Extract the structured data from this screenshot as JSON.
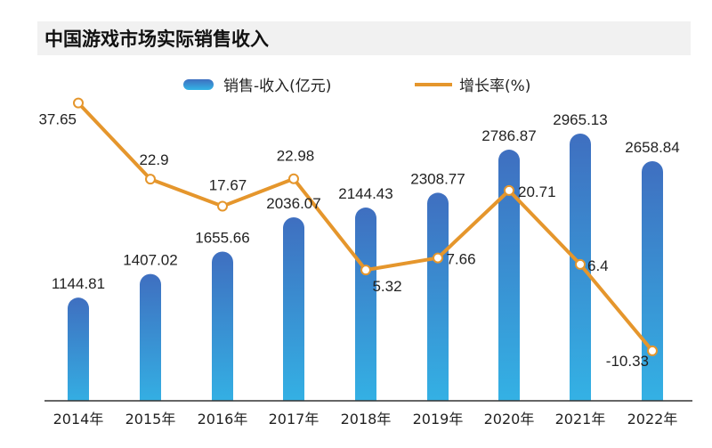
{
  "title": "中国游戏市场实际销售收入",
  "colors": {
    "bar_top": "#3f6fc0",
    "bar_bottom": "#33b4e6",
    "line": "#e5962c",
    "title_band": "#f1f1f1",
    "axis": "#333333"
  },
  "chart_data": {
    "type": "bar",
    "categories": [
      "2014年",
      "2015年",
      "2016年",
      "2017年",
      "2018年",
      "2019年",
      "2020年",
      "2021年",
      "2022年"
    ],
    "series": [
      {
        "name": "销售-收入(亿元)",
        "type": "bar",
        "values": [
          1144.81,
          1407.02,
          1655.66,
          2036.07,
          2144.43,
          2308.77,
          2786.87,
          2965.13,
          2658.84
        ],
        "labels": [
          "1144.81",
          "1407.02",
          "1655.66",
          "2036.07",
          "2144.43",
          "2308.77",
          "2786.87",
          "2965.13",
          "2658.84"
        ]
      },
      {
        "name": "增长率(%)",
        "type": "line",
        "values": [
          37.65,
          22.9,
          17.67,
          22.98,
          5.32,
          7.66,
          20.71,
          6.4,
          -10.33
        ],
        "labels": [
          "37.65",
          "22.9",
          "17.67",
          "22.98",
          "5.32",
          "7.66",
          "20.71",
          "6.4",
          "-10.33"
        ]
      }
    ],
    "legend_position": "top",
    "grid": false
  }
}
